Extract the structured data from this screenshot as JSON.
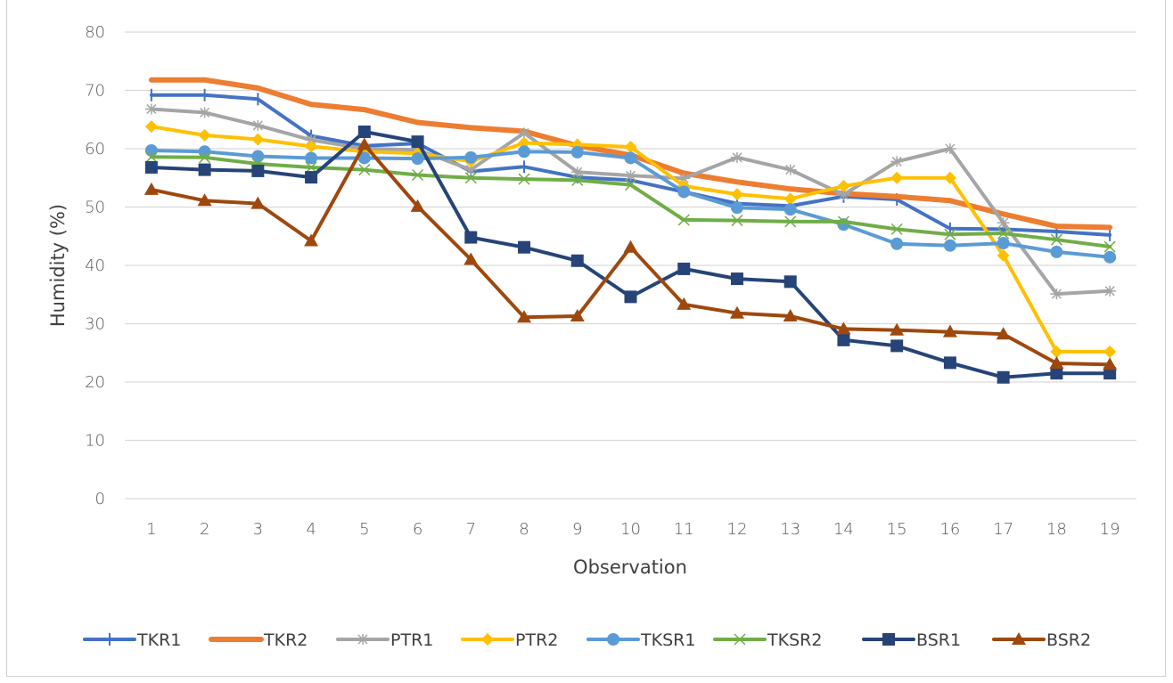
{
  "chart_data": {
    "type": "line",
    "title": "",
    "xlabel": "Observation",
    "ylabel": "Humidity (%)",
    "ylim": [
      0,
      80
    ],
    "yticks": [
      "0",
      "10",
      "20",
      "30",
      "40",
      "50",
      "60",
      "70",
      "80"
    ],
    "ytick_values": [
      0,
      10,
      20,
      30,
      40,
      50,
      60,
      70,
      80
    ],
    "grid": true,
    "legend_position": "bottom",
    "categories": [
      "1",
      "2",
      "3",
      "4",
      "5",
      "6",
      "7",
      "8",
      "9",
      "10",
      "11",
      "12",
      "13",
      "14",
      "15",
      "16",
      "17",
      "18",
      "19"
    ],
    "series": [
      {
        "name": "TKR1",
        "color": "#4472C4",
        "marker": "plus",
        "values": [
          69.2,
          69.2,
          68.5,
          62.2,
          60.5,
          60.9,
          56.1,
          56.9,
          55.1,
          54.6,
          52.6,
          50.6,
          50.2,
          51.8,
          51.3,
          46.3,
          46.2,
          45.8,
          45.2
        ]
      },
      {
        "name": "TKR2",
        "color": "#ED7D31",
        "marker": "none",
        "values": [
          71.8,
          71.8,
          70.4,
          67.6,
          66.7,
          64.5,
          63.6,
          63.0,
          60.5,
          58.9,
          55.8,
          54.3,
          53.1,
          52.3,
          51.8,
          51.1,
          48.8,
          46.7,
          46.5
        ]
      },
      {
        "name": "PTR1",
        "color": "#A5A5A5",
        "marker": "star",
        "values": [
          66.8,
          66.2,
          64.0,
          61.5,
          60.0,
          59.8,
          56.4,
          62.7,
          56.0,
          55.4,
          54.9,
          58.5,
          56.4,
          52.1,
          57.8,
          60.0,
          47.3,
          35.1,
          35.6
        ]
      },
      {
        "name": "PTR2",
        "color": "#FFC000",
        "marker": "diamond",
        "values": [
          63.8,
          62.3,
          61.6,
          60.4,
          59.5,
          59.2,
          57.8,
          61.0,
          60.7,
          60.3,
          53.6,
          52.2,
          51.4,
          53.6,
          55.0,
          55.0,
          41.7,
          25.2,
          25.2
        ]
      },
      {
        "name": "TKSR1",
        "color": "#5B9BD5",
        "marker": "circle",
        "values": [
          59.7,
          59.5,
          58.7,
          58.4,
          58.4,
          58.3,
          58.5,
          59.5,
          59.4,
          58.4,
          52.6,
          49.9,
          49.6,
          47.0,
          43.7,
          43.4,
          43.8,
          42.3,
          41.4
        ]
      },
      {
        "name": "TKSR2",
        "color": "#70AD47",
        "marker": "x",
        "values": [
          58.6,
          58.5,
          57.4,
          56.8,
          56.4,
          55.5,
          55.0,
          54.8,
          54.6,
          53.8,
          47.8,
          47.7,
          47.5,
          47.5,
          46.2,
          45.3,
          45.5,
          44.4,
          43.2
        ]
      },
      {
        "name": "BSR1",
        "color": "#264478",
        "marker": "square",
        "values": [
          56.8,
          56.4,
          56.2,
          55.1,
          62.9,
          61.2,
          44.8,
          43.1,
          40.8,
          34.6,
          39.4,
          37.7,
          37.2,
          27.2,
          26.2,
          23.3,
          20.8,
          21.5,
          21.5
        ]
      },
      {
        "name": "BSR2",
        "color": "#9E480E",
        "marker": "triangle",
        "values": [
          53.0,
          51.1,
          50.6,
          44.2,
          60.7,
          50.1,
          41.0,
          31.1,
          31.3,
          43.1,
          33.3,
          31.8,
          31.3,
          29.1,
          28.9,
          28.6,
          28.2,
          23.2,
          23.0
        ]
      }
    ]
  }
}
